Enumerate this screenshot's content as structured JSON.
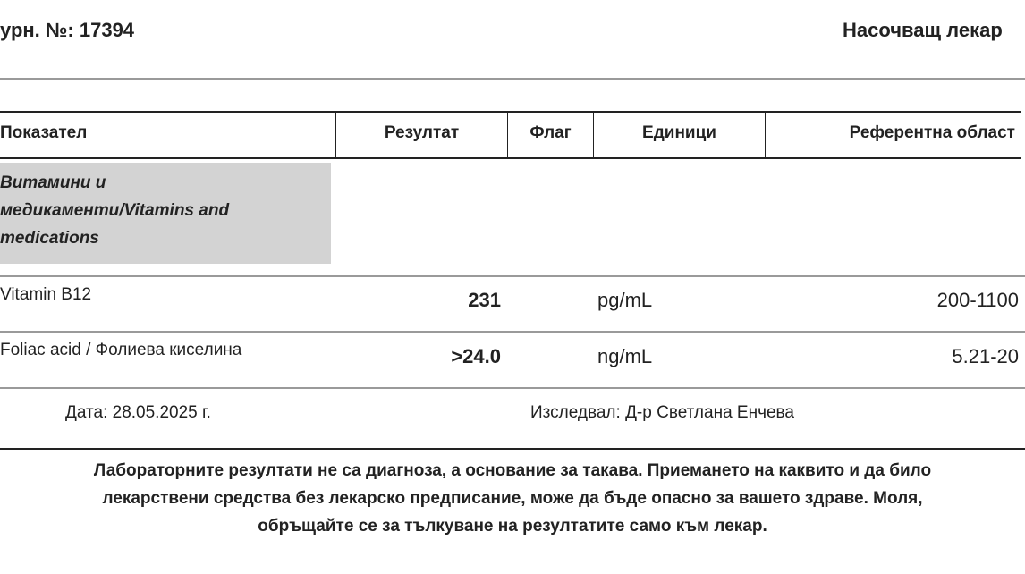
{
  "header": {
    "journal_number": "урн. №: 17394",
    "referring_doctor": "Насочващ лекар"
  },
  "table": {
    "columns": [
      "Показател",
      "Резултат",
      "Флаг",
      "Единици",
      "Референтна област"
    ],
    "category": [
      "Витамини и",
      "медикаменти/Vitamins and",
      "medications"
    ],
    "rows": [
      {
        "name": "Vitamin B12",
        "result": "231",
        "flag": "",
        "unit": "pg/mL",
        "reference": "200-1100"
      },
      {
        "name": "Foliac acid / Фолиева киселина",
        "result": ">24.0",
        "flag": "",
        "unit": "ng/mL",
        "reference": "5.21-20"
      }
    ]
  },
  "footer": {
    "date": "Дата: 28.05.2025 г.",
    "examined_by": "Изследвал: Д-р Светлана Енчева"
  },
  "disclaimer": [
    "Лабораторните резултати не са диагноза, а основание за такава. Приемането на каквито и да било",
    "лекарствени средства без лекарско предписание, може да бъде опасно за вашето здраве. Моля,",
    "обръщайте се за тълкуване на резултатите само към лекар."
  ]
}
